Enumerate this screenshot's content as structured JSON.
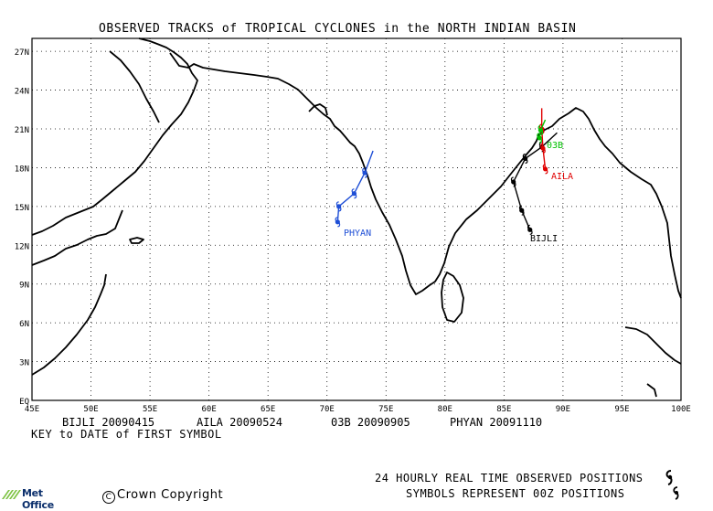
{
  "map": {
    "title": "OBSERVED TRACKS of TROPICAL CYCLONES in the NORTH INDIAN BASIN",
    "lat_range": [
      0,
      28
    ],
    "lon_range": [
      45,
      100
    ],
    "lat_ticks": [
      "27N",
      "24N",
      "21N",
      "18N",
      "15N",
      "12N",
      "9N",
      "6N",
      "3N",
      "EQ"
    ],
    "lon_ticks": [
      "45E",
      "50E",
      "55E",
      "60E",
      "65E",
      "70E",
      "75E",
      "80E",
      "85E",
      "90E",
      "95E",
      "100E"
    ],
    "grid": true
  },
  "storms": [
    {
      "name": "PHYAN",
      "color": "#1f4fd6",
      "track": [
        [
          70.9,
          13.8
        ],
        [
          71.0,
          15.0
        ],
        [
          72.3,
          16.0
        ],
        [
          73.2,
          17.6
        ],
        [
          73.9,
          19.3
        ]
      ]
    },
    {
      "name": "BIJLI",
      "color": "#000000",
      "track": [
        [
          87.2,
          13.2
        ],
        [
          86.5,
          14.7
        ],
        [
          85.8,
          16.9
        ],
        [
          86.8,
          18.7
        ],
        [
          88.2,
          19.6
        ],
        [
          89.5,
          20.7
        ]
      ]
    },
    {
      "name": "AILA",
      "color": "#e00000",
      "track": [
        [
          88.5,
          17.9
        ],
        [
          88.3,
          19.5
        ],
        [
          88.2,
          21.0
        ],
        [
          88.2,
          22.6
        ]
      ]
    },
    {
      "name": "03B",
      "color": "#00c000",
      "track": [
        [
          88.0,
          20.3
        ],
        [
          88.1,
          20.9
        ],
        [
          88.5,
          21.7
        ]
      ]
    }
  ],
  "storm_labels": {
    "PHYAN": "PHYAN",
    "BIJLI": "BIJLI",
    "AILA": "AILA",
    "03B": "03B"
  },
  "legend": {
    "entries": [
      "BIJLI 20090415",
      "AILA 20090524",
      "03B 20090905",
      "PHYAN 20091110"
    ],
    "key_text": "KEY to DATE of FIRST SYMBOL"
  },
  "footer": {
    "line1": "24 HOURLY REAL TIME OBSERVED POSITIONS",
    "line2": "SYMBOLS REPRESENT 00Z POSITIONS",
    "copyright": "Crown Copyright",
    "logo": "Met Office"
  }
}
